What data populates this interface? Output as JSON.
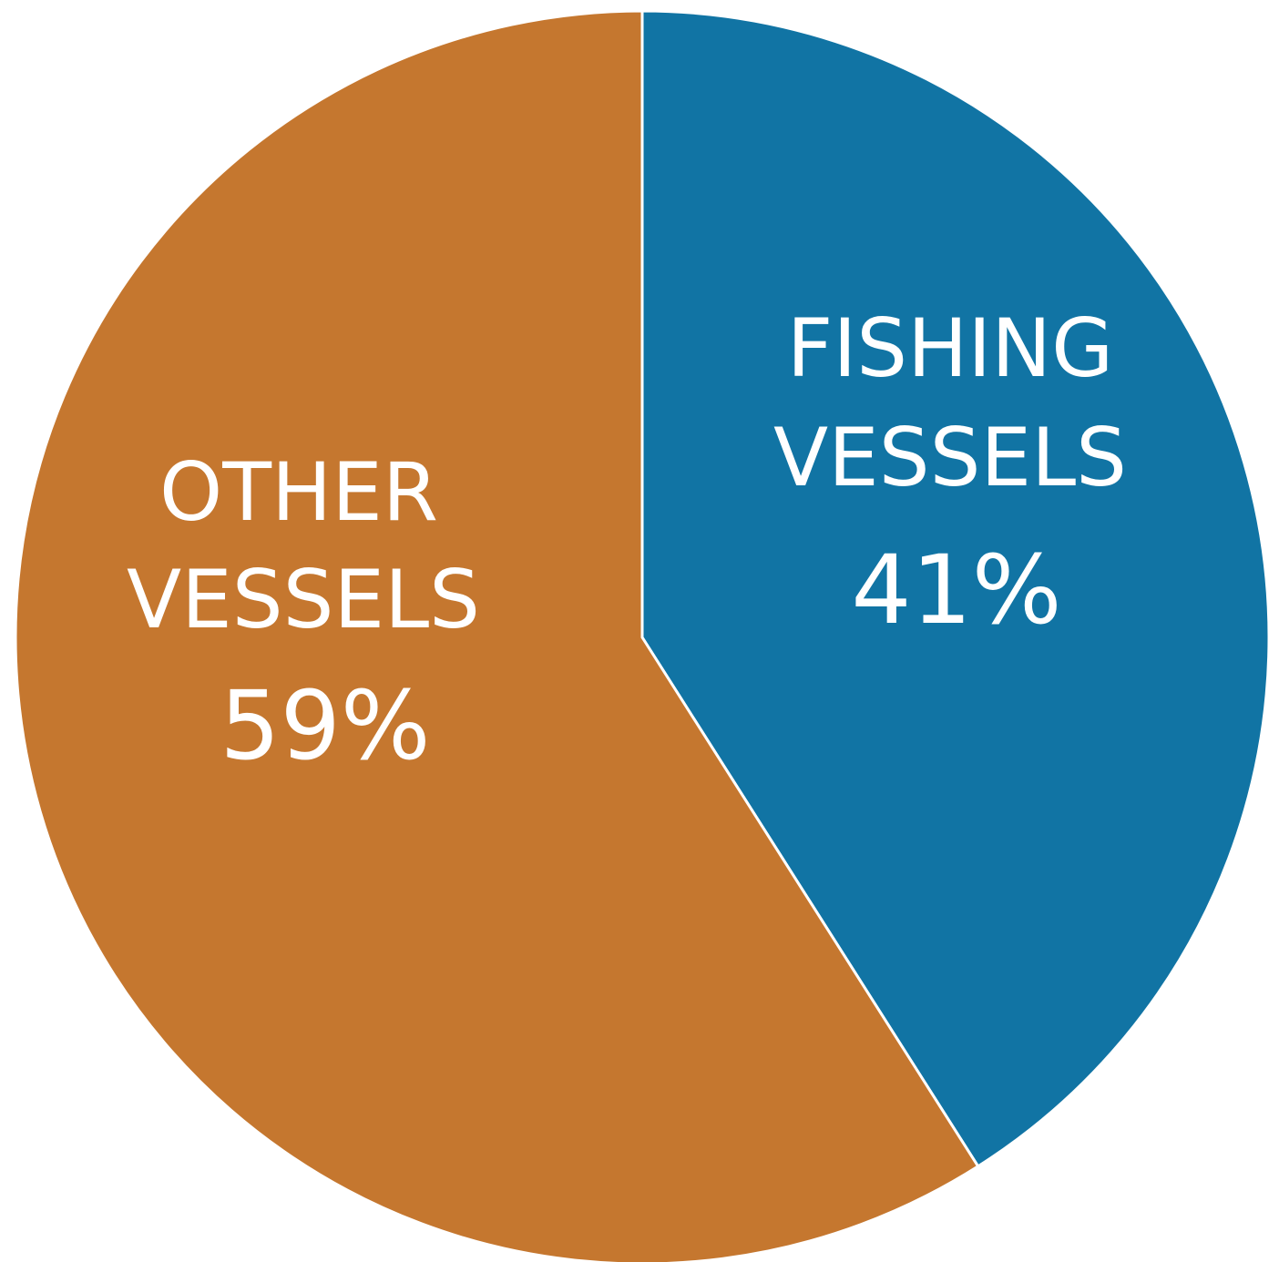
{
  "chart_data": {
    "type": "pie",
    "slices": [
      {
        "label_lines": [
          "FISHING",
          "VESSELS"
        ],
        "value_label": "41%",
        "value": 41,
        "color": "#1174a4"
      },
      {
        "label_lines": [
          "OTHER",
          "VESSELS"
        ],
        "value_label": "59%",
        "value": 59,
        "color": "#c5772f"
      }
    ],
    "start": "top",
    "direction": "clockwise",
    "legend": "none"
  }
}
